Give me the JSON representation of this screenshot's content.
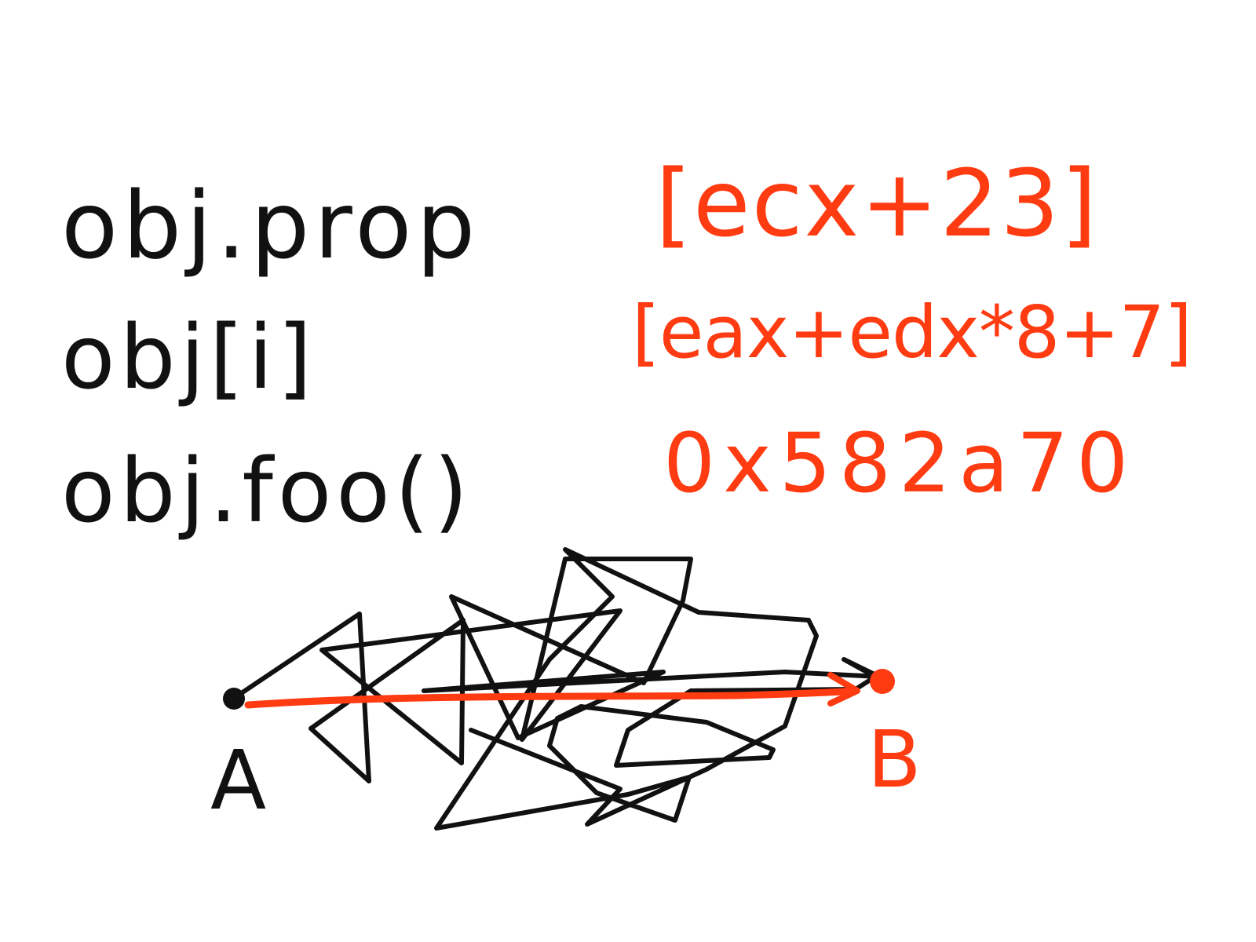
{
  "code_lines": [
    "obj.prop",
    "obj[i]",
    "obj.foo()"
  ],
  "asm_lines": [
    "[ecx+23]",
    "[eax+edx*8+7]",
    "0x582a70"
  ],
  "points": {
    "start_label": "A",
    "end_label": "B"
  },
  "colors": {
    "ink": "#111111",
    "accent": "#ff3b12",
    "background": "#ffffff"
  }
}
